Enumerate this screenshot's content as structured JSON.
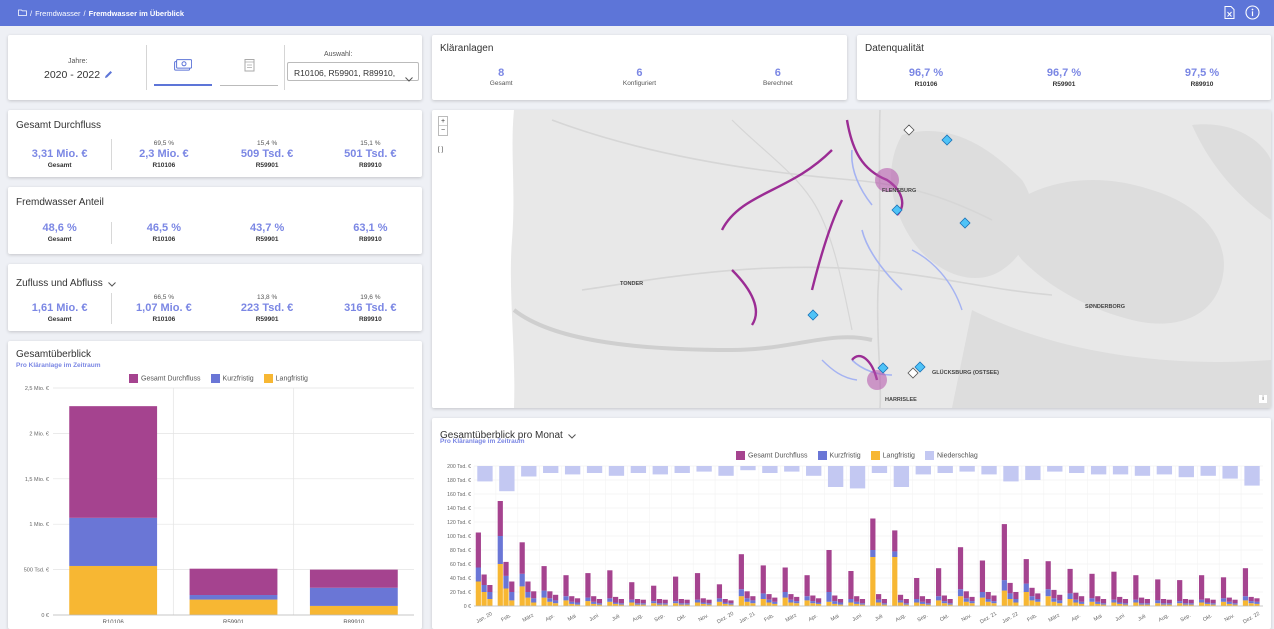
{
  "topbar": {
    "breadcrumb_root": "Fremdwasser",
    "breadcrumb_sep": "/",
    "breadcrumb_current": "Fremdwasser im Überblick",
    "export_icon": "excel-export-icon",
    "info_icon": "info-icon"
  },
  "filter": {
    "years_label": "Jahre:",
    "years_value": "2020 - 2022",
    "selection_label": "Auswahl:",
    "selection_value": "R10106, R59901, R89910,",
    "tab_money_icon": "money-icon",
    "tab_volume_icon": "volume-icon"
  },
  "plants": {
    "title": "Kläranlagen",
    "items": [
      {
        "value": "8",
        "label": "Gesamt"
      },
      {
        "value": "6",
        "label": "Konfiguriert"
      },
      {
        "value": "6",
        "label": "Berechnet"
      }
    ]
  },
  "quality": {
    "title": "Datenqualität",
    "items": [
      {
        "value": "96,7 %",
        "label": "R10106"
      },
      {
        "value": "96,7 %",
        "label": "R59901"
      },
      {
        "value": "97,5 %",
        "label": "R89910"
      }
    ]
  },
  "total_flow": {
    "title": "Gesamt Durchfluss",
    "total": {
      "value": "3,31 Mio. €",
      "label": "Gesamt"
    },
    "items": [
      {
        "pct": "69,5 %",
        "value": "2,3 Mio. €",
        "label": "R10106"
      },
      {
        "pct": "15,4 %",
        "value": "509 Tsd. €",
        "label": "R59901"
      },
      {
        "pct": "15,1 %",
        "value": "501 Tsd. €",
        "label": "R89910"
      }
    ]
  },
  "foreign_water": {
    "title": "Fremdwasser Anteil",
    "total": {
      "value": "48,6 %",
      "label": "Gesamt"
    },
    "items": [
      {
        "value": "46,5 %",
        "label": "R10106"
      },
      {
        "value": "43,7 %",
        "label": "R59901"
      },
      {
        "value": "63,1 %",
        "label": "R89910"
      }
    ]
  },
  "inflow": {
    "title": "Zufluss und Abfluss",
    "total": {
      "value": "1,61 Mio. €",
      "label": "Gesamt"
    },
    "items": [
      {
        "pct": "66,5 %",
        "value": "1,07 Mio. €",
        "label": "R10106"
      },
      {
        "pct": "13,8 %",
        "value": "223 Tsd. €",
        "label": "R59901"
      },
      {
        "pct": "19,6 %",
        "value": "316 Tsd. €",
        "label": "R89910"
      }
    ]
  },
  "overview": {
    "title": "Gesamtüberblick",
    "subtitle": "Pro Kläranlage im Zeitraum",
    "legend": [
      "Gesamt Durchfluss",
      "Kurzfristig",
      "Langfristig"
    ]
  },
  "monthly": {
    "title": "Gesamtüberblick pro Monat",
    "subtitle": "Pro Kläranlage im Zeitraum",
    "legend": [
      "Gesamt Durchfluss",
      "Kurzfristig",
      "Langfristig",
      "Niederschlag"
    ]
  },
  "map": {
    "zoom_in": "+",
    "zoom_out": "−",
    "fullscreen": "[ ]",
    "info": "i",
    "places": [
      "TONDER",
      "FLENSBURG",
      "SØNDERBORG",
      "GLÜCKSBURG (OSTSEE)",
      "HARRISLEE"
    ]
  },
  "colors": {
    "header": "#5d75d8",
    "durchfluss": "#a5438f",
    "kurzfristig": "#6a76d6",
    "langfristig": "#f7b733",
    "niederschlag": "#c3c8f2",
    "accent": "#7b87e4",
    "quality": "#4caf1a"
  },
  "chart_data": [
    {
      "type": "bar",
      "title": "Gesamtüberblick",
      "subtitle": "Pro Kläranlage im Zeitraum",
      "categories": [
        "R10106",
        "R59901",
        "R89910"
      ],
      "stacked": true,
      "ylim": [
        0,
        2500000
      ],
      "yticks": [
        "0 €",
        "500 Tsd. €",
        "1 Mio. €",
        "1,5 Mio. €",
        "2 Mio. €",
        "2,5 Mio. €"
      ],
      "series": [
        {
          "name": "Langfristig",
          "values": [
            540000,
            170000,
            100000
          ]
        },
        {
          "name": "Kurzfristig",
          "values": [
            530000,
            50000,
            200000
          ]
        },
        {
          "name": "Gesamt Durchfluss",
          "values": [
            1230000,
            290000,
            200000
          ]
        }
      ],
      "legend": "top"
    },
    {
      "type": "bar",
      "title": "Gesamtüberblick pro Monat",
      "subtitle": "Pro Kläranlage im Zeitraum",
      "stacked": true,
      "ylim": [
        0,
        200000
      ],
      "yticks": [
        "0 €",
        "20 Tsd. €",
        "40 Tsd. €",
        "60 Tsd. €",
        "80 Tsd. €",
        "100 Tsd. €",
        "120 Tsd. €",
        "140 Tsd. €",
        "160 Tsd. €",
        "180 Tsd. €",
        "200 Tsd. €"
      ],
      "categories": [
        "Jan. 20",
        "Feb.",
        "März",
        "Apr.",
        "Mai",
        "Juni",
        "Juli",
        "Aug.",
        "Sep.",
        "Okt.",
        "Nov.",
        "Dez. 20",
        "Jan. 21",
        "Feb.",
        "März",
        "Apr.",
        "Mai",
        "Juni",
        "Juli",
        "Aug.",
        "Sep.",
        "Okt.",
        "Nov.",
        "Dez. 21",
        "Jan. 22",
        "Feb.",
        "März",
        "Apr.",
        "Mai",
        "Juni",
        "Juli",
        "Aug.",
        "Sep.",
        "Okt.",
        "Nov.",
        "Dez. 22"
      ],
      "plants": [
        "R10106",
        "R59901",
        "R89910"
      ],
      "series": [
        {
          "name": "Langfristig",
          "values": [
            [
              35,
              20,
              10
            ],
            [
              60,
              25,
              8
            ],
            [
              28,
              12,
              5
            ],
            [
              12,
              6,
              4
            ],
            [
              8,
              3,
              2
            ],
            [
              7,
              3,
              2
            ],
            [
              6,
              3,
              2
            ],
            [
              5,
              2,
              2
            ],
            [
              4,
              2,
              2
            ],
            [
              4,
              2,
              2
            ],
            [
              5,
              3,
              2
            ],
            [
              6,
              3,
              2
            ],
            [
              14,
              6,
              4
            ],
            [
              10,
              5,
              3
            ],
            [
              12,
              5,
              4
            ],
            [
              8,
              4,
              3
            ],
            [
              6,
              3,
              2
            ],
            [
              5,
              3,
              2
            ],
            [
              70,
              5,
              2
            ],
            [
              70,
              5,
              2
            ],
            [
              5,
              3,
              2
            ],
            [
              8,
              4,
              2
            ],
            [
              14,
              6,
              4
            ],
            [
              12,
              6,
              4
            ],
            [
              22,
              10,
              5
            ],
            [
              20,
              8,
              6
            ],
            [
              14,
              6,
              4
            ],
            [
              10,
              5,
              3
            ],
            [
              6,
              3,
              2
            ],
            [
              5,
              3,
              2
            ],
            [
              5,
              2,
              2
            ],
            [
              4,
              2,
              2
            ],
            [
              4,
              2,
              2
            ],
            [
              5,
              3,
              2
            ],
            [
              6,
              3,
              2
            ],
            [
              8,
              4,
              3
            ]
          ]
        },
        {
          "name": "Kurzfristig",
          "values": [
            [
              20,
              10,
              10
            ],
            [
              40,
              18,
              12
            ],
            [
              18,
              8,
              6
            ],
            [
              10,
              5,
              4
            ],
            [
              6,
              3,
              3
            ],
            [
              5,
              3,
              2
            ],
            [
              5,
              2,
              2
            ],
            [
              4,
              2,
              2
            ],
            [
              3,
              2,
              2
            ],
            [
              3,
              2,
              2
            ],
            [
              4,
              2,
              2
            ],
            [
              5,
              2,
              2
            ],
            [
              10,
              5,
              4
            ],
            [
              8,
              4,
              3
            ],
            [
              8,
              4,
              3
            ],
            [
              6,
              3,
              2
            ],
            [
              14,
              4,
              3
            ],
            [
              5,
              3,
              2
            ],
            [
              10,
              4,
              2
            ],
            [
              8,
              3,
              2
            ],
            [
              5,
              3,
              2
            ],
            [
              6,
              3,
              2
            ],
            [
              10,
              5,
              3
            ],
            [
              8,
              4,
              3
            ],
            [
              15,
              8,
              5
            ],
            [
              12,
              6,
              4
            ],
            [
              10,
              5,
              4
            ],
            [
              8,
              4,
              3
            ],
            [
              5,
              3,
              2
            ],
            [
              4,
              2,
              2
            ],
            [
              4,
              2,
              2
            ],
            [
              4,
              2,
              2
            ],
            [
              3,
              2,
              2
            ],
            [
              4,
              2,
              2
            ],
            [
              5,
              3,
              2
            ],
            [
              6,
              3,
              3
            ]
          ]
        },
        {
          "name": "Gesamt Durchfluss",
          "values": [
            [
              50,
              15,
              10
            ],
            [
              50,
              20,
              15
            ],
            [
              45,
              15,
              10
            ],
            [
              35,
              10,
              8
            ],
            [
              30,
              8,
              6
            ],
            [
              35,
              8,
              6
            ],
            [
              40,
              8,
              6
            ],
            [
              25,
              6,
              5
            ],
            [
              22,
              6,
              5
            ],
            [
              35,
              6,
              5
            ],
            [
              38,
              6,
              5
            ],
            [
              20,
              5,
              4
            ],
            [
              50,
              10,
              6
            ],
            [
              40,
              8,
              6
            ],
            [
              35,
              8,
              6
            ],
            [
              30,
              8,
              6
            ],
            [
              60,
              8,
              5
            ],
            [
              40,
              8,
              6
            ],
            [
              45,
              8,
              6
            ],
            [
              30,
              8,
              6
            ],
            [
              30,
              8,
              6
            ],
            [
              40,
              8,
              6
            ],
            [
              60,
              10,
              6
            ],
            [
              45,
              10,
              8
            ],
            [
              80,
              15,
              10
            ],
            [
              35,
              12,
              8
            ],
            [
              40,
              12,
              8
            ],
            [
              35,
              10,
              8
            ],
            [
              35,
              8,
              6
            ],
            [
              40,
              8,
              6
            ],
            [
              35,
              8,
              6
            ],
            [
              30,
              6,
              5
            ],
            [
              30,
              6,
              5
            ],
            [
              35,
              6,
              5
            ],
            [
              30,
              6,
              5
            ],
            [
              40,
              6,
              5
            ]
          ]
        },
        {
          "name": "Niederschlag",
          "values": [
            22,
            36,
            15,
            10,
            12,
            10,
            14,
            10,
            12,
            10,
            8,
            14,
            6,
            10,
            8,
            14,
            30,
            32,
            10,
            30,
            12,
            10,
            8,
            12,
            22,
            20,
            8,
            10,
            12,
            12,
            14,
            12,
            16,
            14,
            18,
            28
          ]
        }
      ],
      "legend": "top"
    }
  ]
}
